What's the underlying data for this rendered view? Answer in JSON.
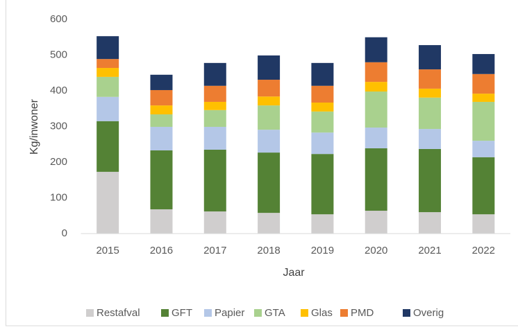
{
  "chart_data": {
    "type": "stacked_bar",
    "x_label": "Jaar",
    "y_label": "Kg/inwoner",
    "categories": [
      "2015",
      "2016",
      "2017",
      "2018",
      "2019",
      "2020",
      "2021",
      "2022"
    ],
    "series": [
      {
        "name": "Restafval",
        "color": "#d0cece",
        "values": [
          173,
          68,
          62,
          58,
          54,
          64,
          60,
          54
        ]
      },
      {
        "name": "GFT",
        "color": "#548235",
        "values": [
          142,
          165,
          173,
          169,
          169,
          175,
          177,
          160
        ]
      },
      {
        "name": "Papier",
        "color": "#b4c7e7",
        "values": [
          68,
          66,
          64,
          64,
          60,
          58,
          56,
          46
        ]
      },
      {
        "name": "GTA",
        "color": "#a9d18e",
        "values": [
          56,
          35,
          47,
          68,
          59,
          101,
          88,
          109
        ]
      },
      {
        "name": "Glas",
        "color": "#ffc000",
        "values": [
          25,
          25,
          23,
          25,
          25,
          27,
          25,
          23
        ]
      },
      {
        "name": "PMD",
        "color": "#ed7d31",
        "values": [
          25,
          43,
          45,
          47,
          47,
          55,
          54,
          55
        ]
      },
      {
        "name": "Overig",
        "color": "#203864",
        "values": [
          64,
          43,
          64,
          68,
          64,
          70,
          68,
          56
        ]
      }
    ],
    "ylim": [
      0,
      600
    ],
    "yticks": [
      0,
      100,
      200,
      300,
      400,
      500,
      600
    ],
    "legend": "bottom"
  }
}
